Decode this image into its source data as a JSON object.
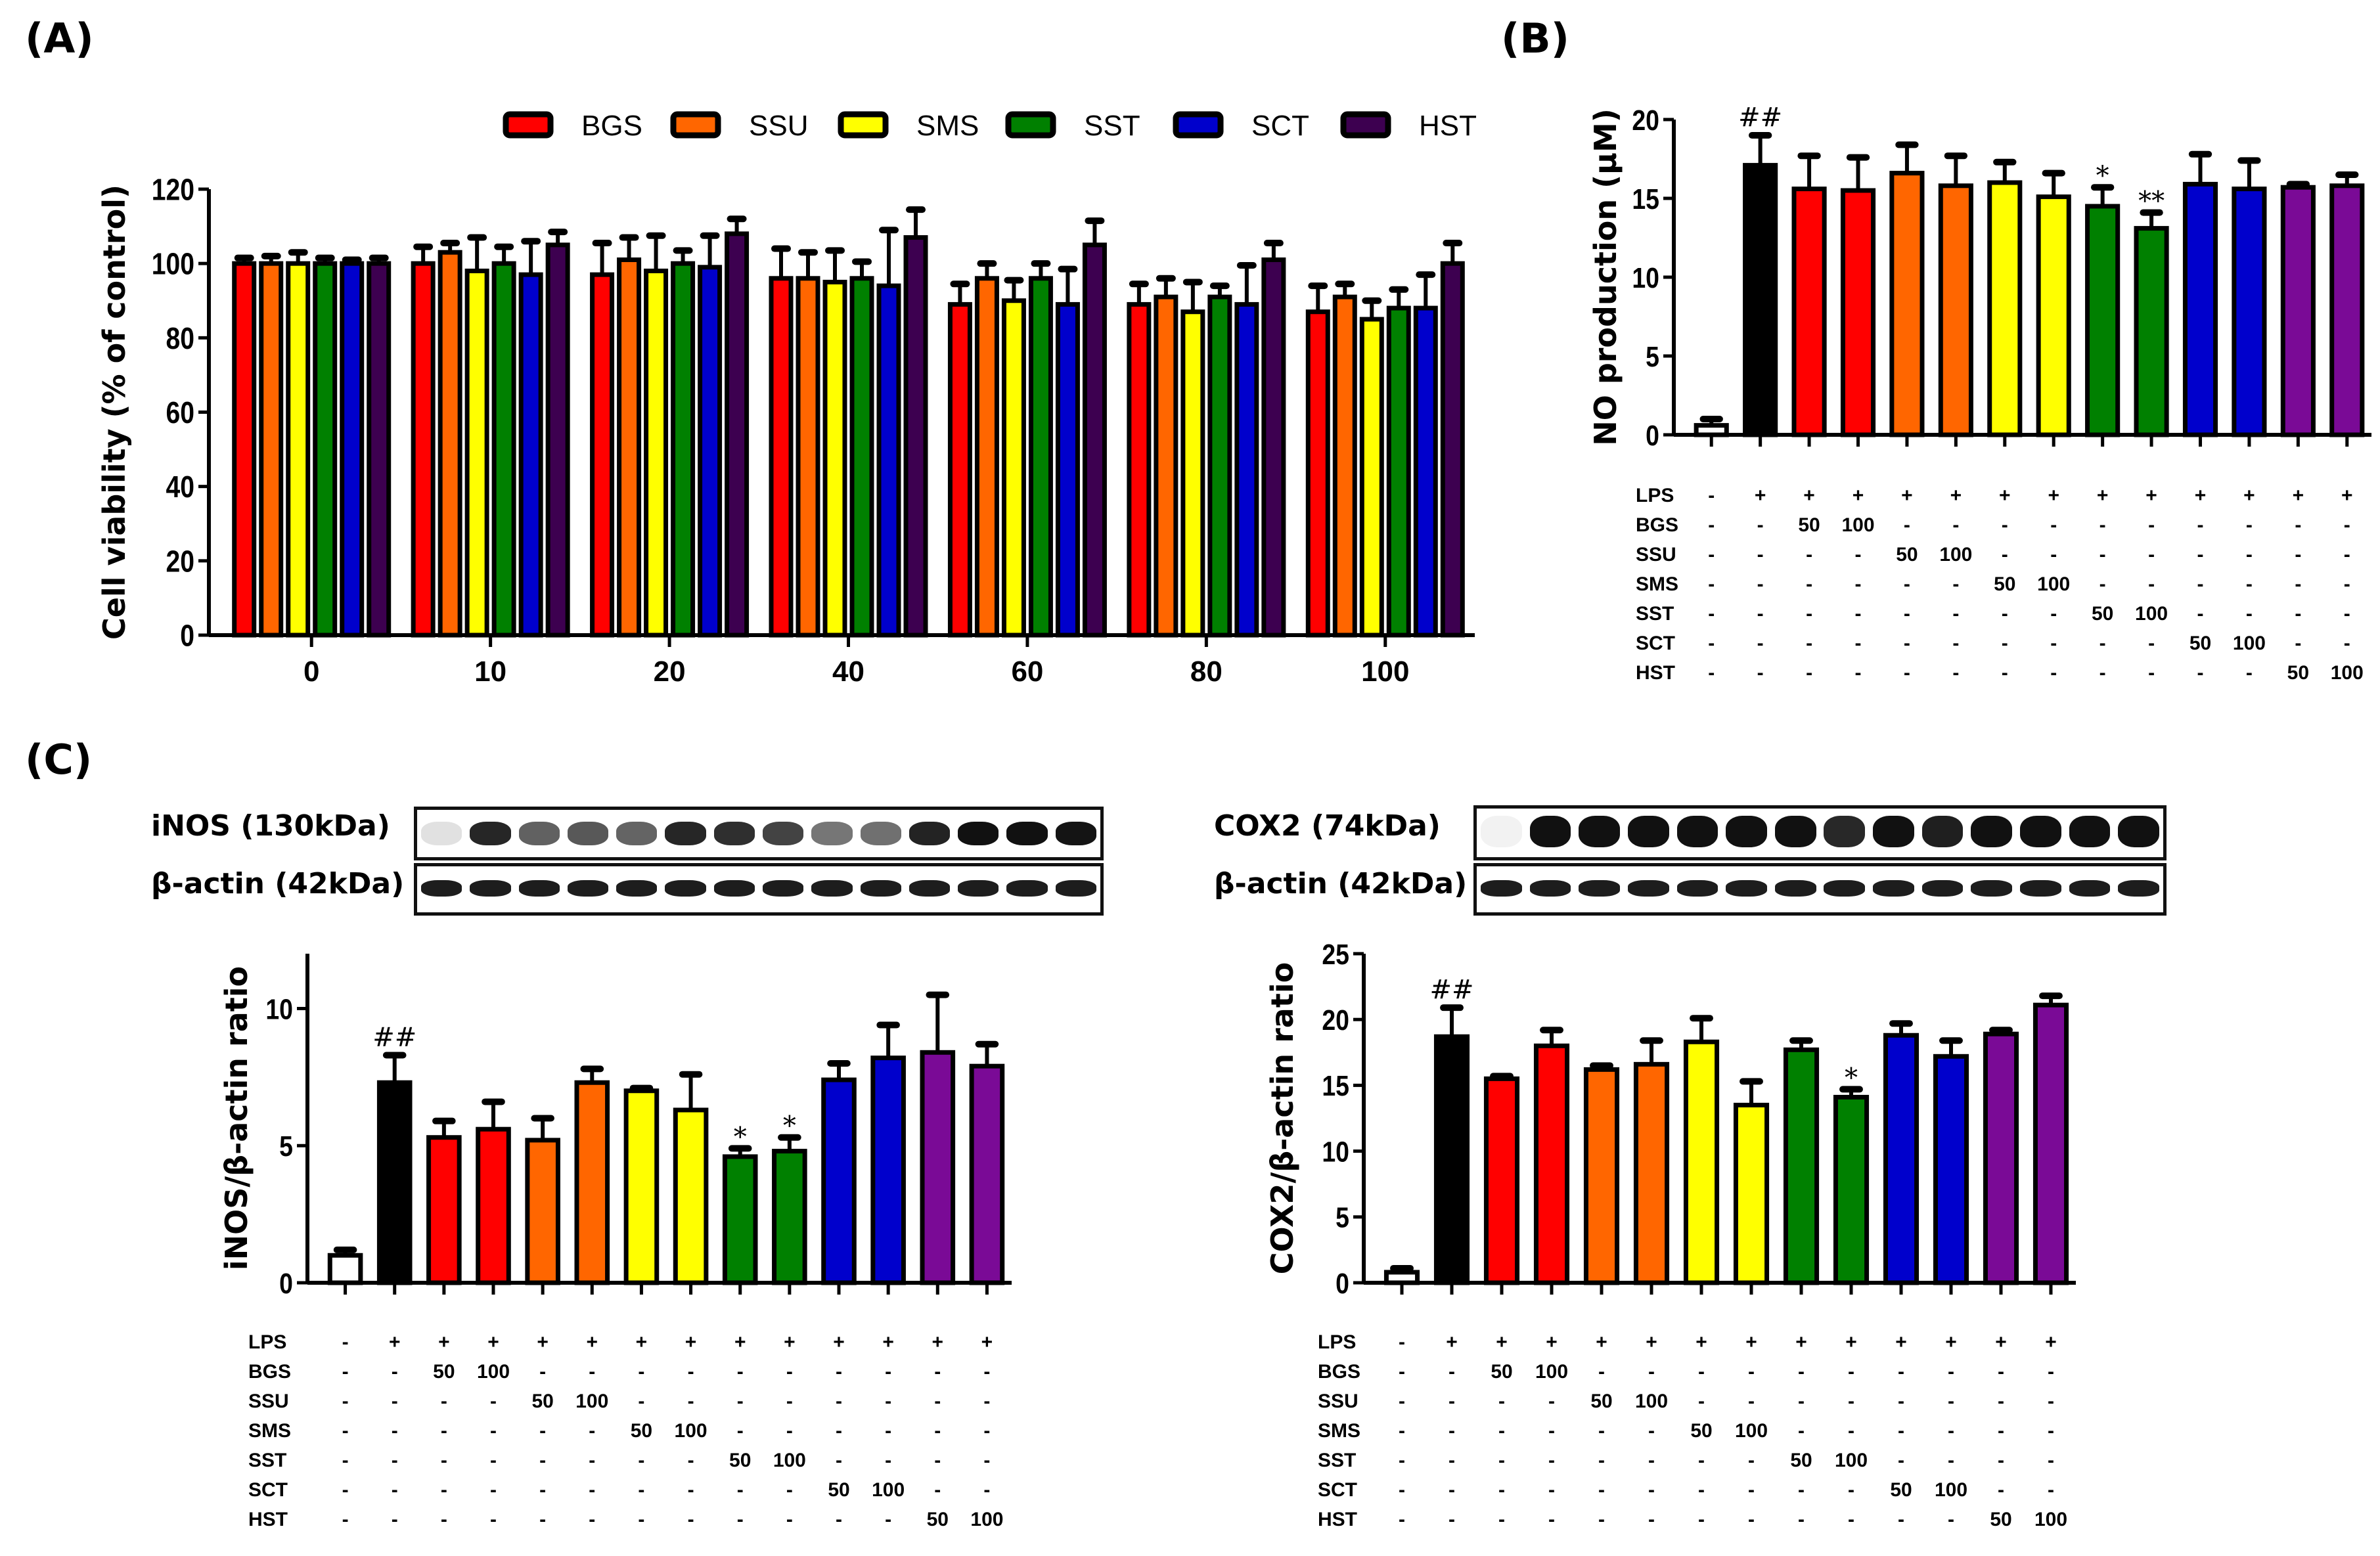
{
  "panels": {
    "A": "(A)",
    "B": "(B)",
    "C": "(C)"
  },
  "colors": {
    "BGS": "#ff0000",
    "SSU": "#ff6600",
    "SMS": "#ffff00",
    "SST": "#008000",
    "SCT": "#0000cc",
    "HST_A": "#3d0050",
    "HST": "#7a0a96",
    "LPS": "#000000",
    "control": "#ffffff"
  },
  "blots": {
    "inos_label": "iNOS (130kDa)",
    "actin_label_left": "β-actin (42kDa)",
    "cox2_label": "COX2 (74kDa)",
    "actin_label_right": "β-actin (42kDa)"
  },
  "treatment_table": {
    "row_labels": [
      "LPS",
      "BGS",
      "SSU",
      "SMS",
      "SST",
      "SCT",
      "HST"
    ],
    "rows": [
      [
        "-",
        "+",
        "+",
        "+",
        "+",
        "+",
        "+",
        "+",
        "+",
        "+",
        "+",
        "+",
        "+",
        "+"
      ],
      [
        "-",
        "-",
        "50",
        "100",
        "-",
        "-",
        "-",
        "-",
        "-",
        "-",
        "-",
        "-",
        "-",
        "-"
      ],
      [
        "-",
        "-",
        "-",
        "-",
        "50",
        "100",
        "-",
        "-",
        "-",
        "-",
        "-",
        "-",
        "-",
        "-"
      ],
      [
        "-",
        "-",
        "-",
        "-",
        "-",
        "-",
        "50",
        "100",
        "-",
        "-",
        "-",
        "-",
        "-",
        "-"
      ],
      [
        "-",
        "-",
        "-",
        "-",
        "-",
        "-",
        "-",
        "-",
        "50",
        "100",
        "-",
        "-",
        "-",
        "-"
      ],
      [
        "-",
        "-",
        "-",
        "-",
        "-",
        "-",
        "-",
        "-",
        "-",
        "-",
        "50",
        "100",
        "-",
        "-"
      ],
      [
        "-",
        "-",
        "-",
        "-",
        "-",
        "-",
        "-",
        "-",
        "-",
        "-",
        "-",
        "-",
        "50",
        "100"
      ]
    ]
  },
  "chart_data": [
    {
      "id": "A",
      "type": "bar",
      "title": "",
      "xlabel": "",
      "ylabel": "Cell viability (% of control)",
      "ylim": [
        0,
        120
      ],
      "yticks": [
        0,
        20,
        40,
        60,
        80,
        100,
        120
      ],
      "categories": [
        "0",
        "10",
        "20",
        "40",
        "60",
        "80",
        "100"
      ],
      "legend": [
        "BGS",
        "SSU",
        "SMS",
        "SST",
        "SCT",
        "HST"
      ],
      "legend_position": "top-right",
      "series": [
        {
          "name": "BGS",
          "values": [
            100,
            100,
            97,
            96,
            89,
            89,
            87
          ],
          "errors": [
            1.5,
            4.5,
            8.5,
            8,
            5.5,
            5.5,
            7
          ]
        },
        {
          "name": "SSU",
          "values": [
            100,
            103,
            101,
            96,
            96,
            91,
            91
          ],
          "errors": [
            2,
            2.5,
            6,
            7,
            4,
            5,
            3.5
          ]
        },
        {
          "name": "SMS",
          "values": [
            100,
            98,
            98,
            95,
            90,
            87,
            85
          ],
          "errors": [
            3,
            9,
            9.5,
            8.5,
            5.5,
            8,
            5
          ]
        },
        {
          "name": "SST",
          "values": [
            100,
            100,
            100,
            96,
            96,
            91,
            88
          ],
          "errors": [
            1.5,
            4.5,
            3.5,
            4.5,
            4,
            3,
            5
          ]
        },
        {
          "name": "SCT",
          "values": [
            100,
            97,
            99,
            94,
            89,
            89,
            88
          ],
          "errors": [
            1,
            9,
            8.5,
            15,
            9.5,
            10.5,
            9
          ]
        },
        {
          "name": "HST",
          "values": [
            100,
            105,
            108,
            107,
            105,
            101,
            100
          ],
          "errors": [
            1.5,
            3.5,
            4,
            7.5,
            6.5,
            4.5,
            5.5
          ]
        }
      ]
    },
    {
      "id": "B",
      "type": "bar",
      "title": "",
      "xlabel": "",
      "ylabel": "NO production (μM)",
      "ylim": [
        0,
        20
      ],
      "yticks": [
        0,
        5,
        10,
        15,
        20
      ],
      "categories": [
        "Control",
        "LPS",
        "BGS 50",
        "BGS 100",
        "SSU 50",
        "SSU 100",
        "SMS 50",
        "SMS 100",
        "SST 50",
        "SST 100",
        "SCT 50",
        "SCT 100",
        "HST 50",
        "HST 100"
      ],
      "values": [
        0.6,
        17.1,
        15.6,
        15.5,
        16.6,
        15.8,
        16.0,
        15.1,
        14.5,
        13.1,
        15.9,
        15.6,
        15.7,
        15.8
      ],
      "errors": [
        0.4,
        1.9,
        2.1,
        2.1,
        1.8,
        1.9,
        1.3,
        1.5,
        1.2,
        1.0,
        1.9,
        1.8,
        0.2,
        0.7
      ],
      "bar_colors": [
        "control",
        "LPS",
        "BGS",
        "BGS",
        "SSU",
        "SSU",
        "SMS",
        "SMS",
        "SST",
        "SST",
        "SCT",
        "SCT",
        "HST",
        "HST"
      ],
      "annotations": [
        "",
        "##",
        "",
        "",
        "",
        "",
        "",
        "",
        "*",
        "**",
        "",
        "",
        "",
        ""
      ]
    },
    {
      "id": "C-iNOS",
      "type": "bar",
      "title": "",
      "xlabel": "",
      "ylabel": "iNOS/β-actin ratio",
      "ylim": [
        0,
        12
      ],
      "yticks": [
        0,
        5,
        10
      ],
      "categories": [
        "Control",
        "LPS",
        "BGS 50",
        "BGS 100",
        "SSU 50",
        "SSU 100",
        "SMS 50",
        "SMS 100",
        "SST 50",
        "SST 100",
        "SCT 50",
        "SCT 100",
        "HST 50",
        "HST 100"
      ],
      "values": [
        1.0,
        7.3,
        5.3,
        5.6,
        5.2,
        7.3,
        7.0,
        6.3,
        4.6,
        4.8,
        7.4,
        8.2,
        8.4,
        7.9
      ],
      "errors": [
        0.2,
        1.0,
        0.6,
        1.0,
        0.8,
        0.5,
        0.1,
        1.3,
        0.3,
        0.5,
        0.6,
        1.2,
        2.1,
        0.8
      ],
      "bar_colors": [
        "control",
        "LPS",
        "BGS",
        "BGS",
        "SSU",
        "SSU",
        "SMS",
        "SMS",
        "SST",
        "SST",
        "SCT",
        "SCT",
        "HST",
        "HST"
      ],
      "annotations": [
        "",
        "##",
        "",
        "",
        "",
        "",
        "",
        "",
        "*",
        "*",
        "",
        "",
        "",
        ""
      ]
    },
    {
      "id": "C-COX2",
      "type": "bar",
      "title": "",
      "xlabel": "",
      "ylabel": "COX2/β-actin ratio",
      "ylim": [
        0,
        25
      ],
      "yticks": [
        0,
        5,
        10,
        15,
        20,
        25
      ],
      "categories": [
        "Control",
        "LPS",
        "BGS 50",
        "BGS 100",
        "SSU 50",
        "SSU 100",
        "SMS 50",
        "SMS 100",
        "SST 50",
        "SST 100",
        "SCT 50",
        "SCT 100",
        "HST 50",
        "HST 100"
      ],
      "values": [
        0.8,
        18.7,
        15.5,
        18.0,
        16.2,
        16.6,
        18.3,
        13.5,
        17.7,
        14.1,
        18.8,
        17.2,
        18.9,
        21.1
      ],
      "errors": [
        0.3,
        2.2,
        0.2,
        1.2,
        0.3,
        1.8,
        1.8,
        1.8,
        0.7,
        0.6,
        0.9,
        1.2,
        0.3,
        0.7
      ],
      "bar_colors": [
        "control",
        "LPS",
        "BGS",
        "BGS",
        "SSU",
        "SSU",
        "SMS",
        "SMS",
        "SST",
        "SST",
        "SCT",
        "SCT",
        "HST",
        "HST"
      ],
      "annotations": [
        "",
        "##",
        "",
        "",
        "",
        "",
        "",
        "",
        "",
        "*",
        "",
        "",
        "",
        ""
      ]
    }
  ]
}
